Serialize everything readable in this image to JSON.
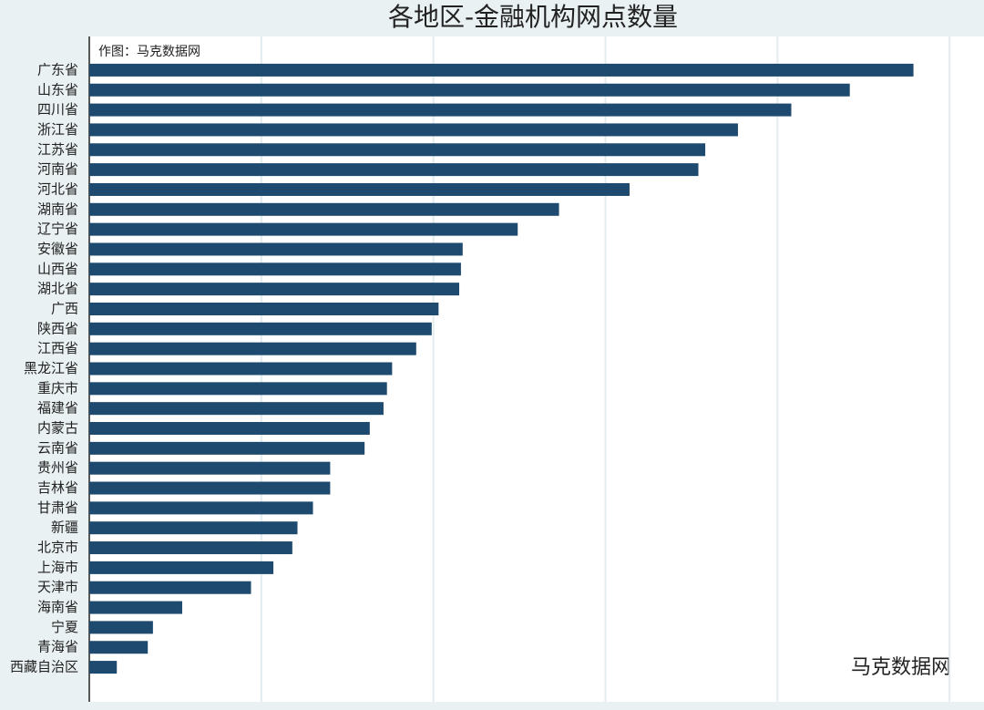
{
  "chart_data": {
    "type": "bar",
    "orientation": "horizontal",
    "title": "各地区-金融机构网点数量",
    "subtitle": "作图：马克数据网",
    "watermark": "马克数据网",
    "categories": [
      "广东省",
      "山东省",
      "四川省",
      "浙江省",
      "江苏省",
      "河南省",
      "河北省",
      "湖南省",
      "辽宁省",
      "安徽省",
      "山西省",
      "湖北省",
      "广西",
      "陕西省",
      "江西省",
      "黑龙江省",
      "重庆市",
      "福建省",
      "内蒙古",
      "云南省",
      "贵州省",
      "吉林省",
      "甘肃省",
      "新疆",
      "北京市",
      "上海市",
      "天津市",
      "海南省",
      "宁夏",
      "青海省",
      "西藏自治区"
    ],
    "values": [
      4.79,
      4.42,
      4.08,
      3.77,
      3.58,
      3.54,
      3.14,
      2.73,
      2.49,
      2.17,
      2.16,
      2.15,
      2.03,
      1.99,
      1.9,
      1.76,
      1.73,
      1.71,
      1.63,
      1.6,
      1.4,
      1.4,
      1.3,
      1.21,
      1.18,
      1.07,
      0.94,
      0.54,
      0.37,
      0.34,
      0.16
    ],
    "color": "#1d4a6e",
    "xlim": [
      0,
      5.2
    ],
    "xgrid": [
      1,
      2,
      3,
      4,
      5
    ],
    "grid": true
  }
}
